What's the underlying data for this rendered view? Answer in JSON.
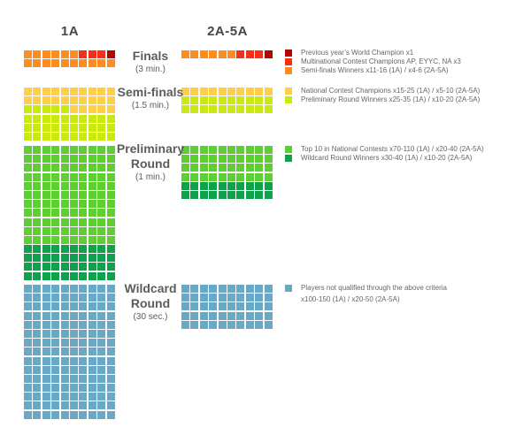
{
  "page": {
    "background": "#ffffff"
  },
  "palette": {
    "orange": "#FF8C1E",
    "red": "#F92E17",
    "dark_red": "#B80400",
    "gold": "#FFCF4A",
    "chartreuse": "#CCE90F",
    "bright_green": "#5DCF32",
    "dark_green": "#0FA24A",
    "blue": "#6AA9C5"
  },
  "color_keys": {
    "O": "orange",
    "R": "red",
    "D": "dark_red",
    "G": "gold",
    "C": "chartreuse",
    "B": "bright_green",
    "E": "dark_green",
    "U": "blue"
  },
  "columns": [
    {
      "label": "1A"
    },
    {
      "label": "2A-5A"
    }
  ],
  "rounds": [
    {
      "title": "Finals",
      "duration": "(3 min.)",
      "grid_1a": [
        "OOOOOORRRD",
        "OOOOOOOOOO"
      ],
      "grid_2a5a": [
        "OOOOOORRRD"
      ],
      "legend": [
        {
          "color": "dark_red",
          "lines": [
            "Previous year’s World Champion x1"
          ]
        },
        {
          "color": "red",
          "lines": [
            "Multinational Contest Champions AP, EYYC, NA x3"
          ]
        },
        {
          "color": "orange",
          "lines": [
            "Semi-finals Winners x11-16 (1A) / x4-6 (2A-5A)"
          ]
        }
      ]
    },
    {
      "title": "Semi-finals",
      "duration": "(1.5 min.)",
      "grid_1a": [
        "GGGGGGGGGG",
        "GGGGGGGGGG",
        "CCCCCGGGGG",
        "CCCCCCCCCC",
        "CCCCCCCCCC",
        "CCCCCCCCCC"
      ],
      "grid_2a5a": [
        "GGGGGGGGGG",
        "CCCCCCCCCC",
        "CCCCCCCCCC"
      ],
      "legend": [
        {
          "color": "gold",
          "lines": [
            "National Contest Champions x15-25 (1A) / x5-10 (2A-5A)"
          ]
        },
        {
          "color": "chartreuse",
          "lines": [
            "Preliminary Round Winners x25-35 (1A) / x10-20 (2A-5A)"
          ]
        }
      ]
    },
    {
      "title": "Preliminary Round",
      "duration": "(1 min.)",
      "grid_1a": [
        "BBBBBBBBBB",
        "BBBBBBBBBB",
        "BBBBBBBBBB",
        "BBBBBBBBBB",
        "BBBBBBBBBB",
        "BBBBBBBBBB",
        "BBBBBBBBBB",
        "BBBBBBBBBB",
        "BBBBBBBBBB",
        "BBBBBBBBBB",
        "BBBBBBBBBB",
        "EEEEEEEEEE",
        "EEEEEEEEEE",
        "EEEEEEEEEE",
        "EEEEEEEEEE"
      ],
      "grid_2a5a": [
        "BBBBBBBBBB",
        "BBBBBBBBBB",
        "BBBBBBBBBB",
        "BBBBBBBBBB",
        "EEEEEEEEEE",
        "EEEEEEEEEE"
      ],
      "legend": [
        {
          "color": "bright_green",
          "lines": [
            "Top 10 in National Contests x70-110 (1A) / x20-40 (2A-5A)"
          ]
        },
        {
          "color": "dark_green",
          "lines": [
            "Wildcard Round Winners x30-40 (1A) / x10-20 (2A-5A)"
          ]
        }
      ]
    },
    {
      "title": "Wildcard Round",
      "duration": "(30 sec.)",
      "grid_1a": [
        "UUUUUUUUUU",
        "UUUUUUUUUU",
        "UUUUUUUUUU",
        "UUUUUUUUUU",
        "UUUUUUUUUU",
        "UUUUUUUUUU",
        "UUUUUUUUUU",
        "UUUUUUUUUU",
        "UUUUUUUUUU",
        "UUUUUUUUUU",
        "UUUUUUUUUU",
        "UUUUUUUUUU",
        "UUUUUUUUUU",
        "UUUUUUUUUU",
        "UUUUUUUUUU"
      ],
      "grid_2a5a": [
        "UUUUUUUUUU",
        "UUUUUUUUUU",
        "UUUUUUUUUU",
        "UUUUUUUUUU",
        "UUUUUUUUUU"
      ],
      "legend": [
        {
          "color": "blue",
          "lines": [
            "Players not qualified through the above criteria",
            "x100-150 (1A) / x20-50 (2A-5A)"
          ]
        }
      ]
    }
  ],
  "chart_data": [
    {
      "type": "waffle",
      "title": "Finals 1A",
      "total": 20,
      "counts": {
        "orange": 16,
        "red": 3,
        "dark_red": 1
      }
    },
    {
      "type": "waffle",
      "title": "Finals 2A-5A",
      "total": 10,
      "counts": {
        "orange": 6,
        "red": 3,
        "dark_red": 1
      }
    },
    {
      "type": "waffle",
      "title": "Semi-finals 1A",
      "total": 60,
      "counts": {
        "gold": 25,
        "chartreuse": 35
      }
    },
    {
      "type": "waffle",
      "title": "Semi-finals 2A-5A",
      "total": 30,
      "counts": {
        "gold": 10,
        "chartreuse": 20
      }
    },
    {
      "type": "waffle",
      "title": "Preliminary Round 1A",
      "total": 150,
      "counts": {
        "bright_green": 110,
        "dark_green": 40
      }
    },
    {
      "type": "waffle",
      "title": "Preliminary Round 2A-5A",
      "total": 60,
      "counts": {
        "bright_green": 40,
        "dark_green": 20
      }
    },
    {
      "type": "waffle",
      "title": "Wildcard Round 1A",
      "total": 150,
      "counts": {
        "blue": 150
      }
    },
    {
      "type": "waffle",
      "title": "Wildcard Round 2A-5A",
      "total": 50,
      "counts": {
        "blue": 50
      }
    }
  ]
}
